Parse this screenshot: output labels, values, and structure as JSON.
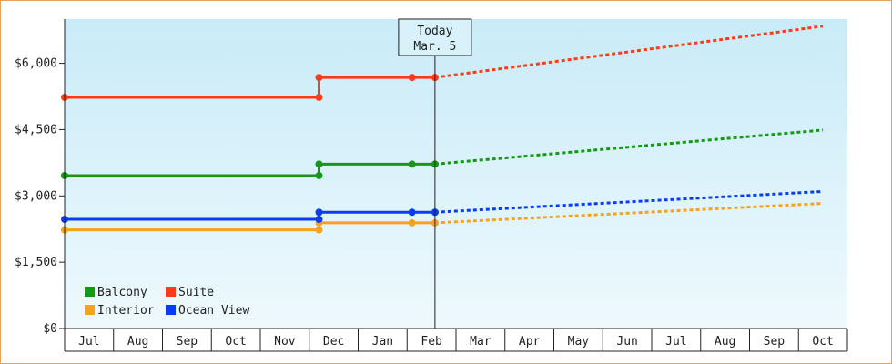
{
  "chart_data": {
    "type": "line",
    "title": "",
    "xlabel": "",
    "ylabel": "",
    "ylim": [
      0,
      7000
    ],
    "y_ticks": [
      "$0",
      "$1,500",
      "$3,000",
      "$4,500",
      "$6,000"
    ],
    "y_tick_values": [
      0,
      1500,
      3000,
      4500,
      6000
    ],
    "x_ticks": [
      "Jul",
      "Aug",
      "Sep",
      "Oct",
      "Nov",
      "Dec",
      "Jan",
      "Feb",
      "Mar",
      "Apr",
      "May",
      "Jun",
      "Jul",
      "Aug",
      "Sep",
      "Oct"
    ],
    "x_start": "Jul",
    "today": {
      "label_line1": "Today",
      "label_line2": "Mar. 5",
      "x": 7.57
    },
    "grid": false,
    "legend_position": "bottom-left",
    "background_gradient": [
      "#c9ebf8",
      "#eef9fd"
    ],
    "series": [
      {
        "name": "Balcony",
        "color": "#129a12",
        "actual": [
          [
            0,
            3460
          ],
          [
            5.2,
            3460
          ],
          [
            5.2,
            3720
          ],
          [
            7.1,
            3720
          ],
          [
            7.57,
            3720
          ]
        ],
        "markers": [
          [
            0,
            3460
          ],
          [
            5.2,
            3460
          ],
          [
            5.2,
            3720
          ],
          [
            7.1,
            3720
          ],
          [
            7.57,
            3720
          ]
        ],
        "forecast": [
          [
            7.57,
            3720
          ],
          [
            15.5,
            4490
          ]
        ]
      },
      {
        "name": "Suite",
        "color": "#ff3a14",
        "actual": [
          [
            0,
            5230
          ],
          [
            5.2,
            5230
          ],
          [
            5.2,
            5680
          ],
          [
            7.1,
            5680
          ],
          [
            7.57,
            5680
          ]
        ],
        "markers": [
          [
            0,
            5230
          ],
          [
            5.2,
            5230
          ],
          [
            5.2,
            5680
          ],
          [
            7.1,
            5680
          ],
          [
            7.57,
            5680
          ]
        ],
        "forecast": [
          [
            7.57,
            5680
          ],
          [
            15.5,
            6840
          ]
        ]
      },
      {
        "name": "Interior",
        "color": "#f7a21c",
        "actual": [
          [
            0,
            2230
          ],
          [
            5.2,
            2230
          ],
          [
            5.2,
            2390
          ],
          [
            7.1,
            2390
          ],
          [
            7.57,
            2390
          ]
        ],
        "markers": [
          [
            0,
            2230
          ],
          [
            5.2,
            2230
          ],
          [
            5.2,
            2390
          ],
          [
            7.1,
            2390
          ],
          [
            7.57,
            2390
          ]
        ],
        "forecast": [
          [
            7.57,
            2390
          ],
          [
            15.5,
            2830
          ]
        ]
      },
      {
        "name": "Ocean View",
        "color": "#0b3cf5",
        "actual": [
          [
            0,
            2470
          ],
          [
            5.2,
            2470
          ],
          [
            5.2,
            2630
          ],
          [
            7.1,
            2630
          ],
          [
            7.57,
            2630
          ]
        ],
        "markers": [
          [
            0,
            2470
          ],
          [
            5.2,
            2470
          ],
          [
            5.2,
            2630
          ],
          [
            7.1,
            2630
          ],
          [
            7.57,
            2630
          ]
        ],
        "forecast": [
          [
            7.57,
            2630
          ],
          [
            15.5,
            3100
          ]
        ]
      }
    ]
  }
}
